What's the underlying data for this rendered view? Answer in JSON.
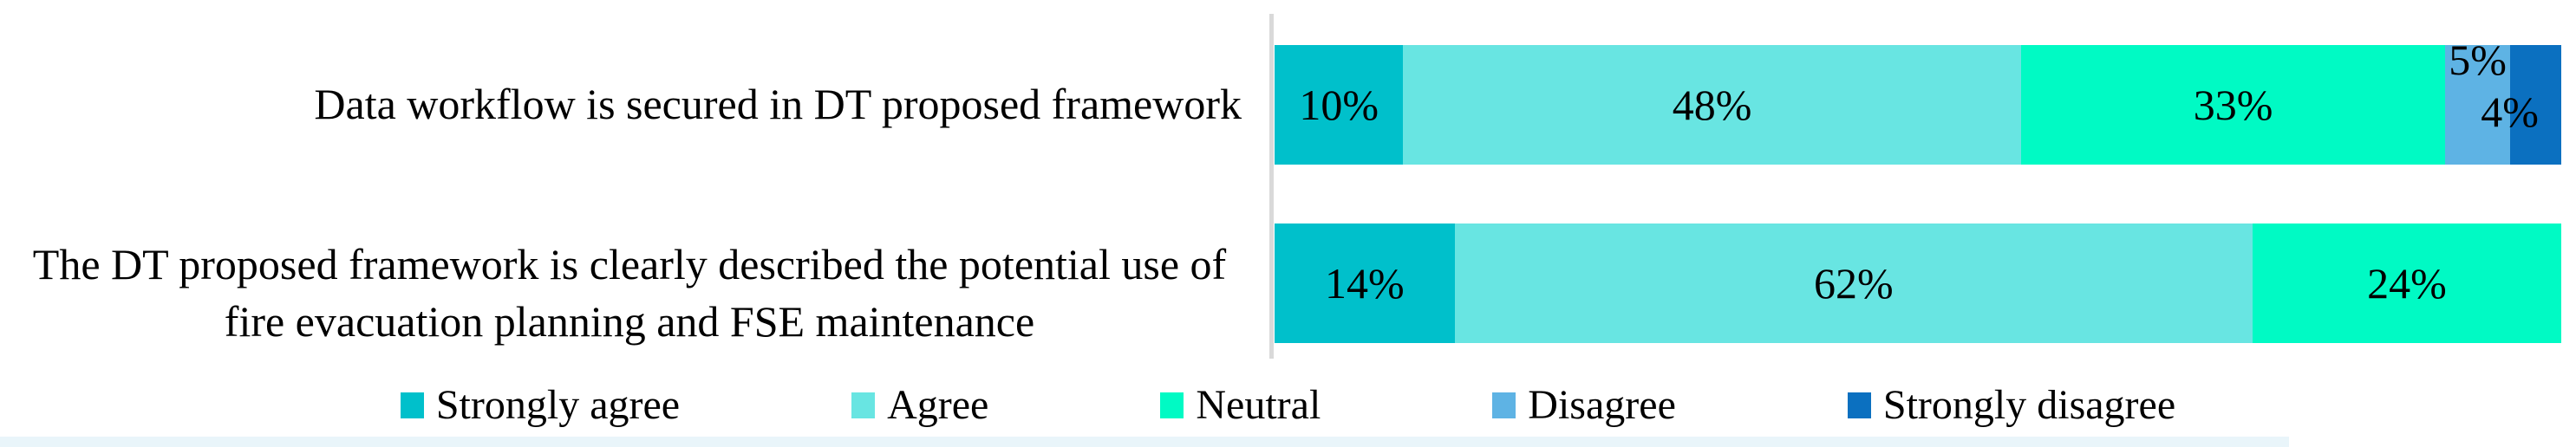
{
  "colors": {
    "strongly_agree": "#00C0CB",
    "agree": "#68E5E2",
    "neutral": "#00FAC4",
    "disagree": "#5EB3E4",
    "strongly_disagree": "#0B70C0",
    "axis_line": "#D9D9D9",
    "bottom_strip": "#E9F5FA",
    "label_text": "#000000"
  },
  "chart_data": {
    "type": "bar",
    "orientation": "horizontal",
    "stacked": true,
    "unit": "percent",
    "xlim": [
      0,
      100
    ],
    "grid": false,
    "legend_position": "bottom",
    "categories": [
      "Data workflow is secured in DT proposed framework",
      "The DT proposed  framework is clearly described the potential use of fire evacuation planning and FSE maintenance"
    ],
    "series": [
      {
        "name": "Strongly agree",
        "key": "strongly_agree",
        "values": [
          10,
          14
        ]
      },
      {
        "name": "Agree",
        "key": "agree",
        "values": [
          48,
          62
        ]
      },
      {
        "name": "Neutral",
        "key": "neutral",
        "values": [
          33,
          24
        ]
      },
      {
        "name": "Disagree",
        "key": "disagree",
        "values": [
          5,
          0
        ]
      },
      {
        "name": "Strongly disagree",
        "key": "strongly_disagree",
        "values": [
          4,
          0
        ]
      }
    ],
    "data_labels": [
      [
        "10%",
        "48%",
        "33%",
        "5%",
        "4%"
      ],
      [
        "14%",
        "62%",
        "24%",
        "",
        ""
      ]
    ],
    "legend": [
      "Strongly agree",
      "Agree",
      "Neutral",
      "Disagree",
      "Strongly disagree"
    ]
  }
}
